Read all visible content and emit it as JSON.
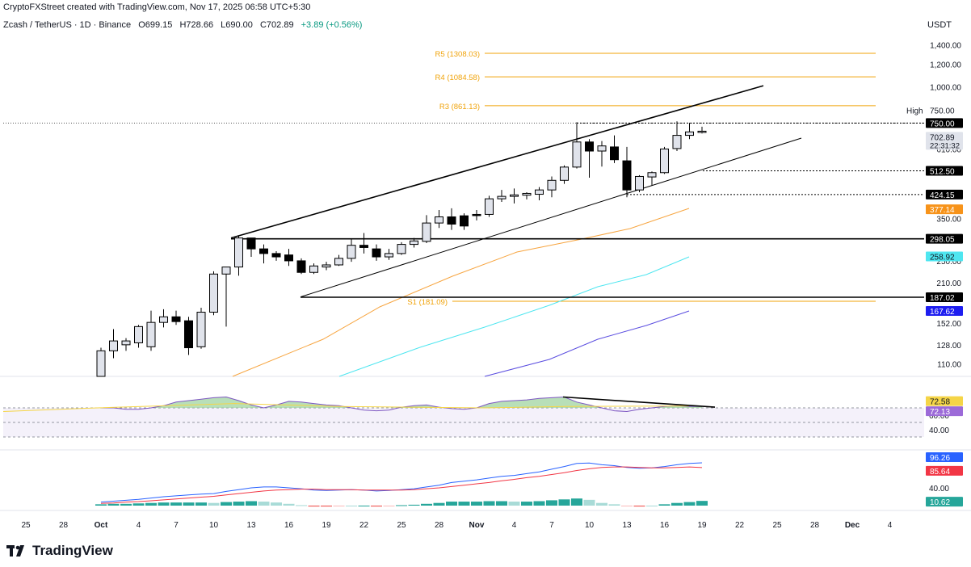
{
  "header": {
    "created_line": "CryptoFXStreet created with TradingView.com, Nov 17, 2025 06:58 UTC+5:30",
    "symbol": "Zcash / TetherUS · 1D · Binance",
    "ohlc": {
      "open": "O699.15",
      "high": "H728.66",
      "low": "L690.00",
      "close": "C702.89",
      "change": "+3.89 (+0.56%)"
    },
    "currency": "USDT"
  },
  "footer": {
    "brand": "TradingView"
  },
  "colors": {
    "up_fill": "#e0e3eb",
    "down_fill": "#000000",
    "pivot": "#f0a30a",
    "ema_orange": "#f7a540",
    "ema_cyan": "#4ee6f0",
    "ema_blue": "#5b4ee0",
    "rsi_line": "#7e57c2",
    "rsi_ma": "#f5d547",
    "macd": "#2962ff",
    "signal": "#f23645",
    "hist_up": "#26a69a",
    "hist_down": "#ef5350"
  },
  "chart_data": {
    "type": "candlestick",
    "x_tick_labels": [
      "25",
      "28",
      "Oct",
      "4",
      "7",
      "10",
      "13",
      "16",
      "19",
      "22",
      "25",
      "28",
      "Nov",
      "4",
      "7",
      "10",
      "13",
      "16",
      "19",
      "22",
      "25",
      "28",
      "Dec",
      "4"
    ],
    "price_axis": {
      "scale": "log",
      "ticks": [
        "1,400.00",
        "1,200.00",
        "1,000.00",
        "750.00",
        "610.00",
        "512.50",
        "424.15",
        "350.00",
        "298.05",
        "250.00",
        "210.00",
        "187.02",
        "152.00",
        "128.00",
        "110.00"
      ]
    },
    "price_labels": [
      {
        "text": "High",
        "value": "750.00"
      },
      {
        "text": "702.89",
        "sub": "22:31:32"
      },
      {
        "text": "750.00"
      },
      {
        "text": "512.50"
      },
      {
        "text": "424.15"
      },
      {
        "text": "377.14"
      },
      {
        "text": "298.05"
      },
      {
        "text": "258.92"
      },
      {
        "text": "187.02"
      },
      {
        "text": "167.62"
      }
    ],
    "pivot_lines": [
      {
        "label": "R5 (1308.03)",
        "value": 1308.03
      },
      {
        "label": "R4 (1084.58)",
        "value": 1084.58
      },
      {
        "label": "R3 (861.13)",
        "value": 861.13
      },
      {
        "label": "S1 (181.09)",
        "value": 181.09
      }
    ],
    "horizontal_levels": [
      750.0,
      512.5,
      424.15,
      298.05,
      187.02
    ],
    "candles": [
      {
        "o": 95,
        "h": 125,
        "l": 95,
        "c": 122
      },
      {
        "o": 122,
        "h": 145,
        "l": 115,
        "c": 132
      },
      {
        "o": 128,
        "h": 135,
        "l": 122,
        "c": 132
      },
      {
        "o": 130,
        "h": 150,
        "l": 125,
        "c": 148
      },
      {
        "o": 126,
        "h": 168,
        "l": 122,
        "c": 153
      },
      {
        "o": 153,
        "h": 170,
        "l": 147,
        "c": 160
      },
      {
        "o": 160,
        "h": 168,
        "l": 150,
        "c": 154
      },
      {
        "o": 155,
        "h": 160,
        "l": 118,
        "c": 125
      },
      {
        "o": 126,
        "h": 172,
        "l": 124,
        "c": 166
      },
      {
        "o": 166,
        "h": 230,
        "l": 162,
        "c": 225
      },
      {
        "o": 225,
        "h": 235,
        "l": 148,
        "c": 238
      },
      {
        "o": 238,
        "h": 305,
        "l": 222,
        "c": 300
      },
      {
        "o": 300,
        "h": 300,
        "l": 258,
        "c": 275
      },
      {
        "o": 275,
        "h": 285,
        "l": 245,
        "c": 265
      },
      {
        "o": 265,
        "h": 270,
        "l": 250,
        "c": 258
      },
      {
        "o": 262,
        "h": 275,
        "l": 240,
        "c": 250
      },
      {
        "o": 250,
        "h": 255,
        "l": 225,
        "c": 228
      },
      {
        "o": 228,
        "h": 245,
        "l": 225,
        "c": 240
      },
      {
        "o": 238,
        "h": 248,
        "l": 232,
        "c": 242
      },
      {
        "o": 242,
        "h": 262,
        "l": 240,
        "c": 255
      },
      {
        "o": 255,
        "h": 298,
        "l": 248,
        "c": 283
      },
      {
        "o": 283,
        "h": 312,
        "l": 265,
        "c": 278
      },
      {
        "o": 275,
        "h": 285,
        "l": 250,
        "c": 258
      },
      {
        "o": 258,
        "h": 275,
        "l": 252,
        "c": 265
      },
      {
        "o": 265,
        "h": 290,
        "l": 262,
        "c": 285
      },
      {
        "o": 285,
        "h": 300,
        "l": 278,
        "c": 293
      },
      {
        "o": 292,
        "h": 360,
        "l": 288,
        "c": 338
      },
      {
        "o": 338,
        "h": 375,
        "l": 325,
        "c": 355
      },
      {
        "o": 355,
        "h": 380,
        "l": 320,
        "c": 335
      },
      {
        "o": 358,
        "h": 365,
        "l": 320,
        "c": 330
      },
      {
        "o": 362,
        "h": 375,
        "l": 345,
        "c": 360
      },
      {
        "o": 362,
        "h": 420,
        "l": 355,
        "c": 410
      },
      {
        "o": 410,
        "h": 440,
        "l": 400,
        "c": 418
      },
      {
        "o": 418,
        "h": 445,
        "l": 395,
        "c": 423
      },
      {
        "o": 422,
        "h": 432,
        "l": 408,
        "c": 428
      },
      {
        "o": 425,
        "h": 450,
        "l": 405,
        "c": 440
      },
      {
        "o": 440,
        "h": 490,
        "l": 415,
        "c": 475
      },
      {
        "o": 475,
        "h": 535,
        "l": 462,
        "c": 528
      },
      {
        "o": 528,
        "h": 755,
        "l": 522,
        "c": 645
      },
      {
        "o": 645,
        "h": 660,
        "l": 485,
        "c": 600
      },
      {
        "o": 600,
        "h": 650,
        "l": 530,
        "c": 625
      },
      {
        "o": 620,
        "h": 680,
        "l": 545,
        "c": 560
      },
      {
        "o": 555,
        "h": 620,
        "l": 415,
        "c": 440
      },
      {
        "o": 440,
        "h": 495,
        "l": 432,
        "c": 490
      },
      {
        "o": 488,
        "h": 510,
        "l": 455,
        "c": 505
      },
      {
        "o": 505,
        "h": 620,
        "l": 500,
        "c": 610
      },
      {
        "o": 612,
        "h": 760,
        "l": 600,
        "c": 680
      },
      {
        "o": 680,
        "h": 750,
        "l": 660,
        "c": 699
      },
      {
        "o": 699,
        "h": 728.66,
        "l": 690,
        "c": 702.89
      }
    ],
    "moving_averages": [
      {
        "label": "377.14",
        "color": "#f7a540"
      },
      {
        "label": "258.92",
        "color": "#4ee6f0"
      },
      {
        "label": "167.62",
        "color": "#5b4ee0"
      }
    ],
    "rsi": {
      "ticks": [
        "60.00",
        "40.00"
      ],
      "labels": [
        "72.58",
        "72.13"
      ],
      "line": [
        70,
        70,
        68,
        68,
        70,
        73,
        78,
        80,
        82,
        84,
        85,
        80,
        74,
        70,
        74,
        79,
        78,
        76,
        74,
        73,
        70,
        67,
        66,
        67,
        71,
        73,
        74,
        71,
        69,
        68,
        70,
        76,
        79,
        80,
        81,
        83,
        84,
        85,
        78,
        74,
        70,
        66,
        65,
        68,
        70,
        72,
        73,
        72,
        72.13
      ]
    },
    "macd": {
      "ticks": [
        "40.00"
      ],
      "labels": [
        "96.26",
        "85.64",
        "10.62"
      ],
      "macd_line": [
        8,
        10,
        12,
        14,
        17,
        20,
        22,
        24,
        26,
        27,
        32,
        36,
        40,
        42,
        42,
        40,
        38,
        35,
        34,
        35,
        36,
        35,
        33,
        34,
        36,
        38,
        42,
        46,
        52,
        55,
        58,
        62,
        66,
        68,
        72,
        76,
        82,
        88,
        95,
        96,
        92,
        90,
        86,
        84,
        85,
        88,
        92,
        95,
        96.26
      ],
      "signal_line": [
        5,
        6,
        8,
        9,
        11,
        13,
        15,
        17,
        19,
        21,
        24,
        27,
        30,
        33,
        35,
        36,
        37,
        37,
        36,
        36,
        36,
        35,
        35,
        35,
        35,
        36,
        38,
        40,
        43,
        46,
        49,
        52,
        56,
        59,
        63,
        66,
        70,
        74,
        79,
        83,
        86,
        87,
        87,
        86,
        85,
        85,
        86,
        87,
        85.64
      ],
      "histogram": [
        3,
        4,
        4,
        5,
        6,
        7,
        7,
        7,
        7,
        6,
        8,
        9,
        10,
        9,
        7,
        4,
        1,
        -2,
        -2,
        -1,
        0,
        0,
        -2,
        -1,
        1,
        2,
        4,
        6,
        9,
        9,
        9,
        10,
        10,
        9,
        9,
        10,
        12,
        14,
        16,
        13,
        6,
        3,
        -1,
        -2,
        0,
        3,
        6,
        8,
        10.62
      ]
    }
  }
}
